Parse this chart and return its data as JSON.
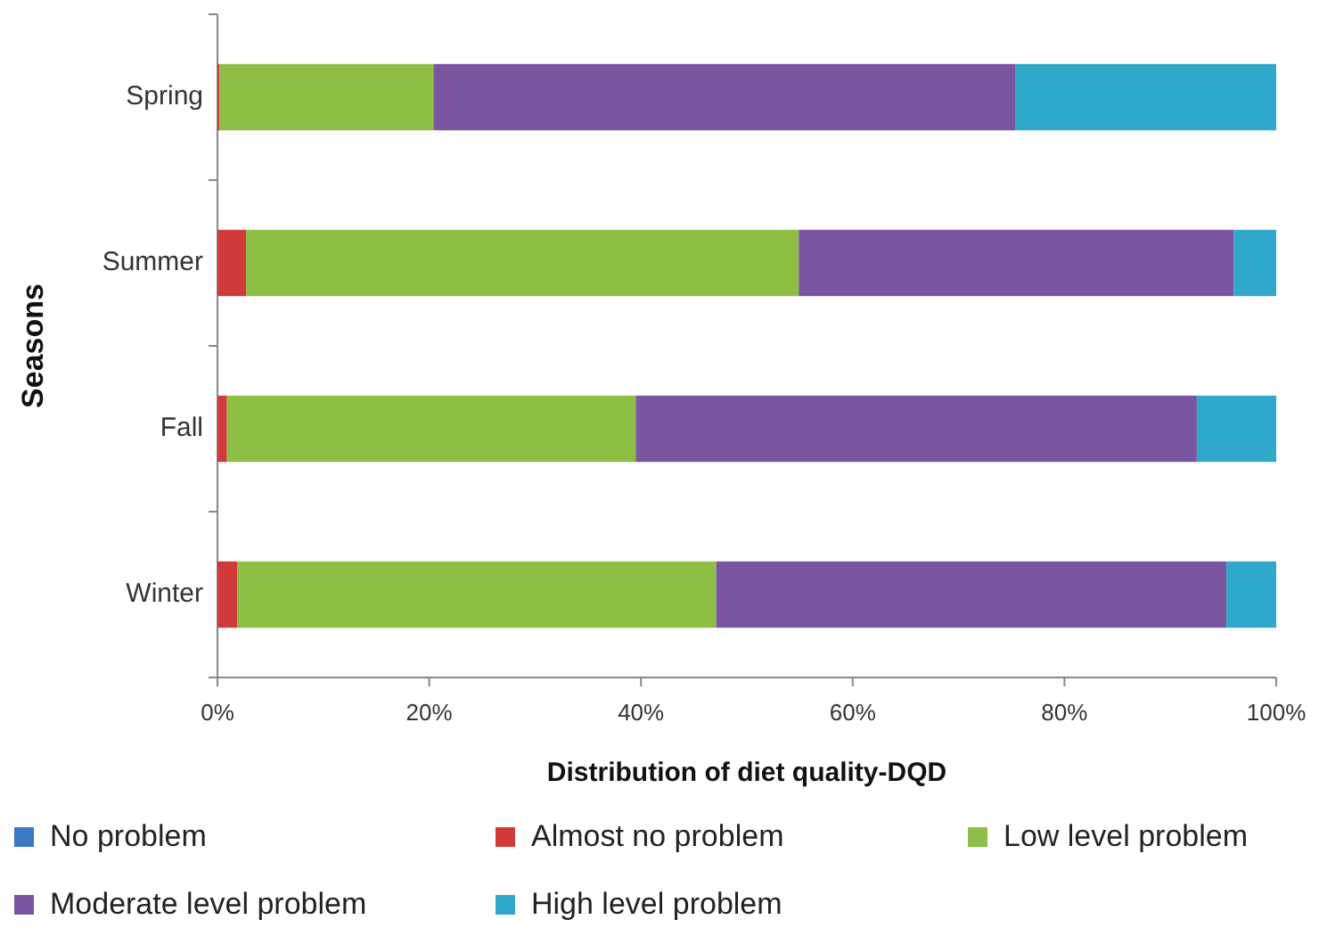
{
  "chart_data": {
    "type": "bar",
    "orientation": "horizontal",
    "stacked": true,
    "xlabel": "Distribution  of diet quality-DQD",
    "ylabel": "Seasons",
    "categories": [
      "Spring",
      "Summer",
      "Fall",
      "Winter"
    ],
    "series": [
      {
        "name": "No problem",
        "color": "#3b78c2",
        "values": [
          0,
          0,
          0,
          0
        ]
      },
      {
        "name": "Almost no problem",
        "color": "#d03a3a",
        "values": [
          0.2,
          2.7,
          0.9,
          1.9
        ]
      },
      {
        "name": "Low level problem",
        "color": "#8fbe45",
        "values": [
          20.2,
          52.2,
          38.6,
          45.2
        ]
      },
      {
        "name": "Moderate level problem",
        "color": "#7a55a0",
        "values": [
          55.0,
          41.1,
          53.0,
          48.2
        ]
      },
      {
        "name": "High level problem",
        "color": "#2fa8cb",
        "values": [
          24.6,
          4.0,
          7.5,
          4.7
        ]
      }
    ],
    "xlim": [
      0,
      100
    ],
    "xticks": [
      {
        "value": 0,
        "label": "0%"
      },
      {
        "value": 20,
        "label": "20%"
      },
      {
        "value": 40,
        "label": "40%"
      },
      {
        "value": 60,
        "label": "60%"
      },
      {
        "value": 80,
        "label": "80%"
      },
      {
        "value": 100,
        "label": "100%"
      }
    ],
    "grid": false,
    "legend": "bottom"
  }
}
